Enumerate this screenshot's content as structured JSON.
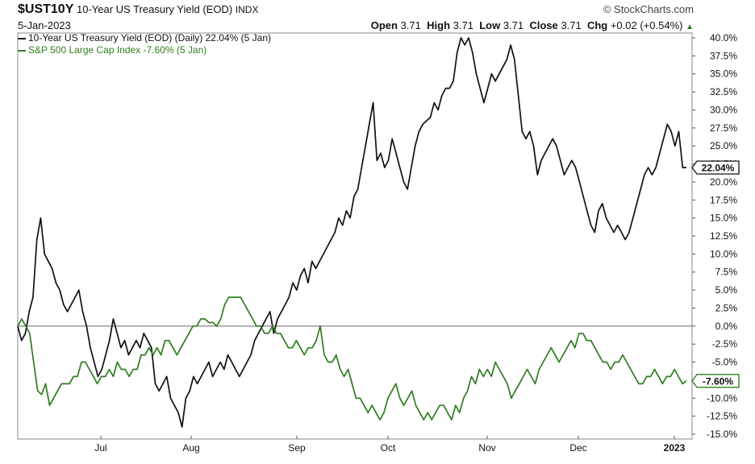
{
  "header": {
    "symbol": "$UST10Y",
    "name": "10-Year US Treasury Yield (EOD)",
    "exchange": "INDX",
    "date": "5-Jan-2023",
    "brand": "© StockCharts.com",
    "open_label": "Open",
    "open": "3.71",
    "high_label": "High",
    "high": "3.71",
    "low_label": "Low",
    "low": "3.71",
    "close_label": "Close",
    "close": "3.71",
    "chg_label": "Chg",
    "chg": "+0.02 (+0.54%)"
  },
  "legend": [
    {
      "text": "10-Year US Treasury Yield (EOD) (Daily) 22.04% (5 Jan)",
      "color": "#111111"
    },
    {
      "text": "S&P 500 Large Cap Index -7.60% (5 Jan)",
      "color": "#2e7d1e"
    }
  ],
  "chart_data": {
    "type": "line",
    "x_tick_labels": [
      "Jul",
      "Aug",
      "Sep",
      "Oct",
      "Nov",
      "Dec",
      "2023"
    ],
    "y_tick_labels": [
      "40.0%",
      "37.5%",
      "35.0%",
      "32.5%",
      "30.0%",
      "27.5%",
      "25.0%",
      "22.5%",
      "20.0%",
      "17.5%",
      "15.0%",
      "12.5%",
      "10.0%",
      "7.5%",
      "5.0%",
      "2.5%",
      "0.0%",
      "-2.5%",
      "-5.0%",
      "-7.5%",
      "-10.0%",
      "-12.5%",
      "-15.0%"
    ],
    "ylim": [
      -15,
      40
    ],
    "grid": false,
    "zero_line": true,
    "series": [
      {
        "name": "10-Year US Treasury Yield (EOD)",
        "color": "#111111",
        "last_label": "22.04%",
        "values": [
          0,
          -2,
          -1,
          2,
          4,
          12,
          15,
          10,
          9,
          8,
          6,
          5,
          3,
          2,
          3,
          4,
          5,
          2,
          0,
          -3,
          -5,
          -7,
          -6,
          -4,
          -2,
          1,
          -1,
          -3,
          -2,
          -4,
          -3,
          -2,
          -3,
          -1,
          -2,
          -3,
          -8,
          -9,
          -8,
          -7,
          -10,
          -11,
          -12,
          -14,
          -10,
          -9,
          -7,
          -8,
          -7,
          -6,
          -5,
          -7,
          -6,
          -5,
          -6,
          -4,
          -5,
          -6,
          -7,
          -6,
          -5,
          -4,
          -2,
          -1,
          0,
          1,
          2,
          -1,
          1,
          2,
          3,
          4,
          6,
          5,
          7,
          8,
          6,
          9,
          8,
          9,
          10,
          11,
          12,
          13,
          15,
          14,
          16,
          15,
          18,
          19,
          22,
          25,
          28,
          31,
          23,
          24,
          22,
          23,
          26,
          24,
          22,
          20,
          19,
          22,
          25,
          27,
          28,
          28.5,
          29,
          31,
          30,
          32,
          33,
          33,
          34,
          38,
          40,
          39,
          40,
          38,
          35,
          33,
          31,
          33,
          35,
          34,
          35,
          36,
          37,
          39,
          37,
          32,
          27,
          26,
          27,
          25,
          21,
          23,
          24,
          25,
          26,
          25,
          23,
          21,
          22,
          23,
          22,
          20,
          18,
          16,
          14,
          13,
          16,
          17,
          15,
          14,
          13,
          14,
          13,
          12,
          13,
          15,
          17,
          19,
          21,
          22,
          21,
          22,
          24,
          26,
          28,
          27,
          25,
          27,
          22,
          22
        ]
      },
      {
        "name": "S&P 500 Large Cap Index",
        "color": "#2e7d1e",
        "last_label": "-7.60%",
        "values": [
          0,
          1,
          0,
          -1,
          -5,
          -9,
          -9.5,
          -8,
          -11,
          -10,
          -9,
          -8,
          -8,
          -8,
          -7,
          -7,
          -5,
          -5,
          -6,
          -7,
          -8,
          -7,
          -7,
          -6,
          -7,
          -5,
          -6,
          -6,
          -7,
          -6,
          -6,
          -4,
          -4,
          -3,
          -4,
          -3,
          -4,
          -2,
          -2,
          -3,
          -4,
          -3,
          -2,
          -1,
          0,
          0,
          1,
          1,
          0.5,
          0.5,
          0,
          1,
          3,
          4,
          4,
          4,
          4,
          3,
          2,
          1,
          0,
          0,
          -1,
          -1,
          0,
          -1,
          -1,
          -2,
          -3,
          -3,
          -2,
          -3,
          -4,
          -3,
          -3,
          -2,
          0,
          -4,
          -5,
          -5,
          -4,
          -6,
          -7,
          -6,
          -8,
          -10,
          -10,
          -11,
          -12,
          -11,
          -12,
          -13,
          -12,
          -10,
          -9,
          -8,
          -10,
          -11,
          -10,
          -9,
          -11,
          -12,
          -13,
          -12,
          -13,
          -12,
          -11,
          -11,
          -12,
          -13,
          -11,
          -12,
          -10,
          -9,
          -7,
          -8,
          -6,
          -7,
          -6,
          -7,
          -5,
          -6,
          -7,
          -8,
          -10,
          -9,
          -8,
          -7,
          -6,
          -7,
          -8,
          -6,
          -5,
          -4,
          -3,
          -4,
          -5,
          -4,
          -3,
          -2,
          -3,
          -1,
          -1,
          -2,
          -2,
          -3,
          -4,
          -5,
          -5,
          -6,
          -5,
          -5,
          -4,
          -5,
          -6,
          -7,
          -8,
          -8,
          -7,
          -7,
          -6,
          -7,
          -8,
          -7,
          -7,
          -6,
          -7,
          -8,
          -7.6
        ]
      }
    ]
  }
}
